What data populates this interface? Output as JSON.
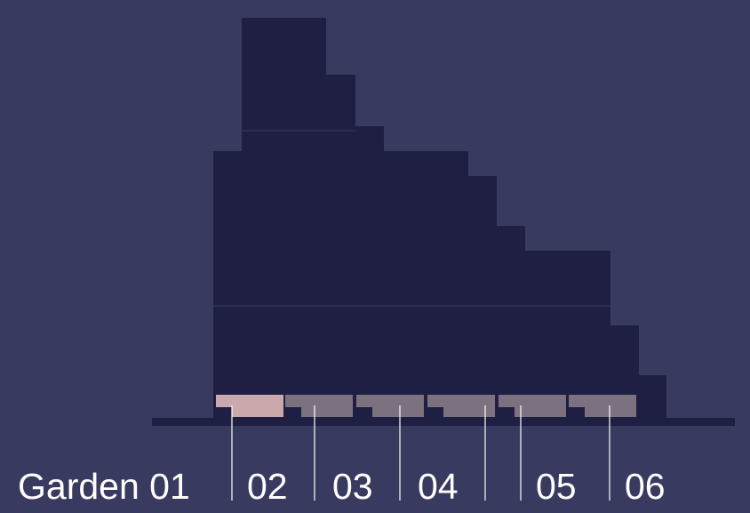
{
  "colors": {
    "background": "#393a5f",
    "massing": "#1f1f43",
    "plot_active": "#c9a9ab",
    "plot_inactive": "#7c727f",
    "leader_line": "#ffffff",
    "label_text": "#ffffff"
  },
  "labels": {
    "prefix": "Garden",
    "items": [
      {
        "id": "01",
        "active": true
      },
      {
        "id": "02",
        "active": false
      },
      {
        "id": "03",
        "active": false
      },
      {
        "id": "04",
        "active": false
      },
      {
        "id": "05",
        "active": false
      },
      {
        "id": "06",
        "active": false
      }
    ]
  }
}
